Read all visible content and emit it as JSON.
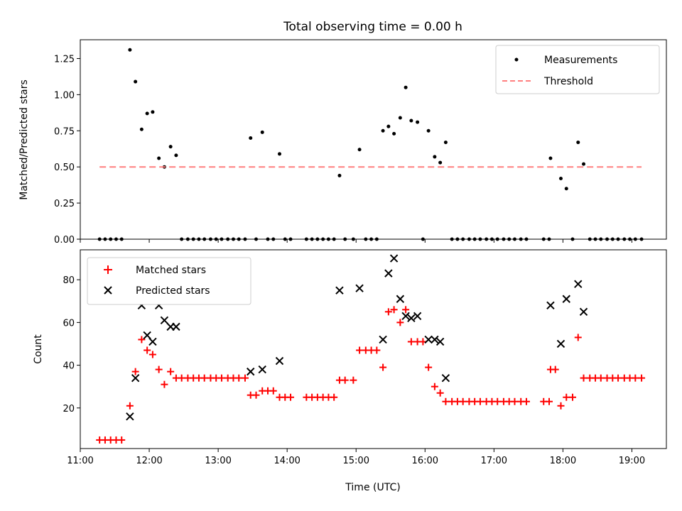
{
  "figure": {
    "title": "Total observing time = 0.00 h",
    "xlabel": "Time (UTC)",
    "x_ticks": [
      "11:00",
      "12:00",
      "13:00",
      "14:00",
      "15:00",
      "16:00",
      "17:00",
      "18:00",
      "19:00"
    ]
  },
  "colors": {
    "measurements": "#000000",
    "threshold": "#ff7f7f",
    "matched": "#ff0000",
    "predicted": "#000000"
  },
  "chart_data": [
    {
      "type": "scatter",
      "ylabel": "Matched/Predicted stars",
      "xlim": [
        "11:00",
        "19:30"
      ],
      "x_unit": "hours UTC",
      "ylim": [
        0,
        1.38
      ],
      "y_ticks": [
        "0.00",
        "0.25",
        "0.50",
        "0.75",
        "1.00",
        "1.25"
      ],
      "legend": {
        "placement": "upper right",
        "entries": [
          "Measurements",
          "Threshold"
        ]
      },
      "series": [
        {
          "name": "Measurements",
          "marker": "dot",
          "points": [
            [
              11.28,
              0
            ],
            [
              11.36,
              0
            ],
            [
              11.44,
              0
            ],
            [
              11.52,
              0
            ],
            [
              11.6,
              0
            ],
            [
              11.72,
              1.31
            ],
            [
              11.8,
              1.09
            ],
            [
              11.89,
              0.76
            ],
            [
              11.97,
              0.87
            ],
            [
              12.05,
              0.88
            ],
            [
              12.14,
              0.56
            ],
            [
              12.22,
              0.5
            ],
            [
              12.31,
              0.64
            ],
            [
              12.39,
              0.58
            ],
            [
              12.47,
              0
            ],
            [
              12.56,
              0
            ],
            [
              12.64,
              0
            ],
            [
              12.72,
              0
            ],
            [
              12.8,
              0
            ],
            [
              12.89,
              0
            ],
            [
              12.97,
              0
            ],
            [
              13.05,
              0
            ],
            [
              13.14,
              0
            ],
            [
              13.22,
              0
            ],
            [
              13.3,
              0
            ],
            [
              13.39,
              0
            ],
            [
              13.47,
              0.7
            ],
            [
              13.55,
              0
            ],
            [
              13.64,
              0.74
            ],
            [
              13.72,
              0
            ],
            [
              13.8,
              0
            ],
            [
              13.89,
              0.59
            ],
            [
              13.97,
              0
            ],
            [
              14.05,
              0
            ],
            [
              14.28,
              0
            ],
            [
              14.36,
              0
            ],
            [
              14.44,
              0
            ],
            [
              14.52,
              0
            ],
            [
              14.6,
              0
            ],
            [
              14.68,
              0
            ],
            [
              14.76,
              0.44
            ],
            [
              14.84,
              0
            ],
            [
              14.96,
              0
            ],
            [
              15.05,
              0.62
            ],
            [
              15.14,
              0
            ],
            [
              15.22,
              0
            ],
            [
              15.3,
              0
            ],
            [
              15.39,
              0.75
            ],
            [
              15.47,
              0.78
            ],
            [
              15.55,
              0.73
            ],
            [
              15.64,
              0.84
            ],
            [
              15.72,
              1.05
            ],
            [
              15.8,
              0.82
            ],
            [
              15.89,
              0.81
            ],
            [
              15.97,
              0
            ],
            [
              16.05,
              0.75
            ],
            [
              16.14,
              0.57
            ],
            [
              16.22,
              0.53
            ],
            [
              16.3,
              0.67
            ],
            [
              16.39,
              0
            ],
            [
              16.47,
              0
            ],
            [
              16.55,
              0
            ],
            [
              16.64,
              0
            ],
            [
              16.72,
              0
            ],
            [
              16.8,
              0
            ],
            [
              16.89,
              0
            ],
            [
              16.97,
              0
            ],
            [
              17.05,
              0
            ],
            [
              17.14,
              0
            ],
            [
              17.22,
              0
            ],
            [
              17.3,
              0
            ],
            [
              17.39,
              0
            ],
            [
              17.47,
              0
            ],
            [
              17.72,
              0
            ],
            [
              17.8,
              0
            ],
            [
              17.82,
              0.56
            ],
            [
              17.97,
              0.42
            ],
            [
              18.05,
              0.35
            ],
            [
              18.14,
              0
            ],
            [
              18.22,
              0.67
            ],
            [
              18.3,
              0.52
            ],
            [
              18.39,
              0
            ],
            [
              18.47,
              0
            ],
            [
              18.55,
              0
            ],
            [
              18.64,
              0
            ],
            [
              18.72,
              0
            ],
            [
              18.8,
              0
            ],
            [
              18.89,
              0
            ],
            [
              18.97,
              0
            ],
            [
              19.05,
              0
            ],
            [
              19.14,
              0
            ]
          ]
        },
        {
          "name": "Threshold",
          "style": "dashed",
          "points": [
            [
              11.28,
              0.5
            ],
            [
              19.14,
              0.5
            ]
          ]
        }
      ]
    },
    {
      "type": "scatter",
      "ylabel": "Count",
      "xlim": [
        "11:00",
        "19:30"
      ],
      "x_unit": "hours UTC",
      "ylim": [
        1,
        94
      ],
      "y_ticks": [
        "20",
        "40",
        "60",
        "80"
      ],
      "legend": {
        "placement": "upper left",
        "entries": [
          "Matched stars",
          "Predicted stars"
        ]
      },
      "series": [
        {
          "name": "Matched stars",
          "marker": "plus",
          "points": [
            [
              11.28,
              5
            ],
            [
              11.36,
              5
            ],
            [
              11.44,
              5
            ],
            [
              11.52,
              5
            ],
            [
              11.6,
              5
            ],
            [
              11.72,
              21
            ],
            [
              11.8,
              37
            ],
            [
              11.89,
              52
            ],
            [
              11.97,
              47
            ],
            [
              12.05,
              45
            ],
            [
              12.14,
              38
            ],
            [
              12.22,
              31
            ],
            [
              12.31,
              37
            ],
            [
              12.39,
              34
            ],
            [
              12.47,
              34
            ],
            [
              12.56,
              34
            ],
            [
              12.64,
              34
            ],
            [
              12.72,
              34
            ],
            [
              12.8,
              34
            ],
            [
              12.89,
              34
            ],
            [
              12.97,
              34
            ],
            [
              13.05,
              34
            ],
            [
              13.14,
              34
            ],
            [
              13.22,
              34
            ],
            [
              13.3,
              34
            ],
            [
              13.39,
              34
            ],
            [
              13.47,
              26
            ],
            [
              13.55,
              26
            ],
            [
              13.64,
              28
            ],
            [
              13.72,
              28
            ],
            [
              13.8,
              28
            ],
            [
              13.89,
              25
            ],
            [
              13.97,
              25
            ],
            [
              14.05,
              25
            ],
            [
              14.28,
              25
            ],
            [
              14.36,
              25
            ],
            [
              14.44,
              25
            ],
            [
              14.52,
              25
            ],
            [
              14.6,
              25
            ],
            [
              14.68,
              25
            ],
            [
              14.76,
              33
            ],
            [
              14.84,
              33
            ],
            [
              14.96,
              33
            ],
            [
              15.05,
              47
            ],
            [
              15.14,
              47
            ],
            [
              15.22,
              47
            ],
            [
              15.3,
              47
            ],
            [
              15.39,
              39
            ],
            [
              15.47,
              65
            ],
            [
              15.55,
              66
            ],
            [
              15.64,
              60
            ],
            [
              15.72,
              66
            ],
            [
              15.8,
              51
            ],
            [
              15.89,
              51
            ],
            [
              15.97,
              51
            ],
            [
              16.05,
              39
            ],
            [
              16.14,
              30
            ],
            [
              16.22,
              27
            ],
            [
              16.3,
              23
            ],
            [
              16.39,
              23
            ],
            [
              16.47,
              23
            ],
            [
              16.55,
              23
            ],
            [
              16.64,
              23
            ],
            [
              16.72,
              23
            ],
            [
              16.8,
              23
            ],
            [
              16.89,
              23
            ],
            [
              16.97,
              23
            ],
            [
              17.05,
              23
            ],
            [
              17.14,
              23
            ],
            [
              17.22,
              23
            ],
            [
              17.3,
              23
            ],
            [
              17.39,
              23
            ],
            [
              17.47,
              23
            ],
            [
              17.72,
              23
            ],
            [
              17.8,
              23
            ],
            [
              17.82,
              38
            ],
            [
              17.89,
              38
            ],
            [
              17.97,
              21
            ],
            [
              18.05,
              25
            ],
            [
              18.14,
              25
            ],
            [
              18.22,
              53
            ],
            [
              18.3,
              34
            ],
            [
              18.39,
              34
            ],
            [
              18.47,
              34
            ],
            [
              18.55,
              34
            ],
            [
              18.64,
              34
            ],
            [
              18.72,
              34
            ],
            [
              18.8,
              34
            ],
            [
              18.89,
              34
            ],
            [
              18.97,
              34
            ],
            [
              19.05,
              34
            ],
            [
              19.14,
              34
            ]
          ]
        },
        {
          "name": "Predicted stars",
          "marker": "x",
          "points": [
            [
              11.72,
              16
            ],
            [
              11.8,
              34
            ],
            [
              11.89,
              68
            ],
            [
              11.97,
              54
            ],
            [
              12.05,
              51
            ],
            [
              12.14,
              68
            ],
            [
              12.22,
              61
            ],
            [
              12.31,
              58
            ],
            [
              12.39,
              58
            ],
            [
              13.47,
              37
            ],
            [
              13.64,
              38
            ],
            [
              13.89,
              42
            ],
            [
              14.76,
              75
            ],
            [
              15.05,
              76
            ],
            [
              15.39,
              52
            ],
            [
              15.47,
              83
            ],
            [
              15.55,
              90
            ],
            [
              15.64,
              71
            ],
            [
              15.72,
              63
            ],
            [
              15.8,
              62
            ],
            [
              15.89,
              63
            ],
            [
              16.05,
              52
            ],
            [
              16.14,
              52
            ],
            [
              16.22,
              51
            ],
            [
              16.3,
              34
            ],
            [
              17.82,
              68
            ],
            [
              17.97,
              50
            ],
            [
              18.05,
              71
            ],
            [
              18.22,
              78
            ],
            [
              18.3,
              65
            ]
          ]
        }
      ]
    }
  ]
}
